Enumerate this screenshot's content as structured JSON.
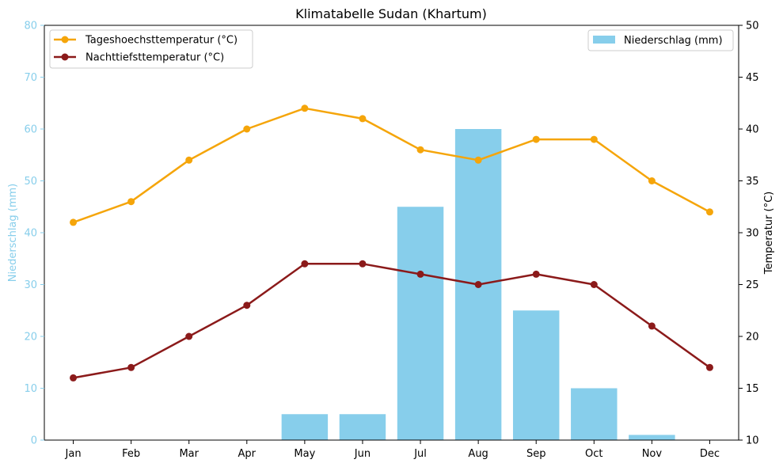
{
  "chart_data": {
    "type": "bar",
    "title": "Klimatabelle Sudan (Khartum)",
    "categories": [
      "Jan",
      "Feb",
      "Mar",
      "Apr",
      "May",
      "Jun",
      "Jul",
      "Aug",
      "Sep",
      "Oct",
      "Nov",
      "Dec"
    ],
    "left_axis": {
      "label": "Niederschlag (mm)",
      "ylim": [
        0,
        80
      ],
      "ticks": [
        0,
        10,
        20,
        30,
        40,
        50,
        60,
        70,
        80
      ],
      "color": "#87ceeb"
    },
    "right_axis": {
      "label": "Temperatur (°C)",
      "ylim": [
        10,
        50
      ],
      "ticks": [
        10,
        15,
        20,
        25,
        30,
        35,
        40,
        45,
        50
      ],
      "color": "#000000"
    },
    "series": [
      {
        "name": "Niederschlag (mm)",
        "type": "bar",
        "axis": "left",
        "color": "#87ceeb",
        "values": [
          0,
          0,
          0,
          0,
          5,
          5,
          45,
          60,
          25,
          10,
          1,
          0
        ]
      },
      {
        "name": "Tageshoechsttemperatur (°C)",
        "type": "line",
        "axis": "right",
        "color": "#f5a50a",
        "values": [
          31,
          33,
          37,
          40,
          42,
          41,
          38,
          37,
          39,
          39,
          35,
          32
        ]
      },
      {
        "name": "Nachttiefsttemperatur (°C)",
        "type": "line",
        "axis": "right",
        "color": "#8b1a1a",
        "values": [
          16,
          17,
          20,
          23,
          27,
          27,
          26,
          25,
          26,
          25,
          21,
          17
        ]
      }
    ],
    "legend_lines_placement": "top-left",
    "legend_bars_placement": "top-right",
    "grid": false
  }
}
